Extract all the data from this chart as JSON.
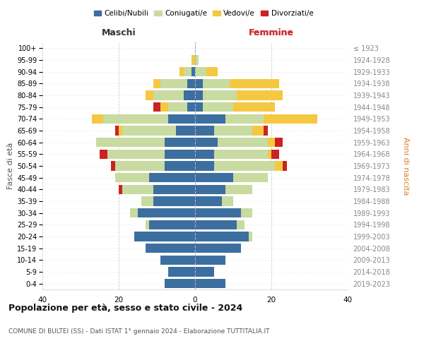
{
  "age_groups": [
    "0-4",
    "5-9",
    "10-14",
    "15-19",
    "20-24",
    "25-29",
    "30-34",
    "35-39",
    "40-44",
    "45-49",
    "50-54",
    "55-59",
    "60-64",
    "65-69",
    "70-74",
    "75-79",
    "80-84",
    "85-89",
    "90-94",
    "95-99",
    "100+"
  ],
  "birth_years": [
    "2019-2023",
    "2014-2018",
    "2009-2013",
    "2004-2008",
    "1999-2003",
    "1994-1998",
    "1989-1993",
    "1984-1988",
    "1979-1983",
    "1974-1978",
    "1969-1973",
    "1964-1968",
    "1959-1963",
    "1954-1958",
    "1949-1953",
    "1944-1948",
    "1939-1943",
    "1934-1938",
    "1929-1933",
    "1924-1928",
    "≤ 1923"
  ],
  "maschi": {
    "celibi": [
      8,
      7,
      9,
      13,
      16,
      12,
      15,
      11,
      11,
      12,
      8,
      8,
      8,
      5,
      7,
      2,
      3,
      2,
      1,
      0,
      0
    ],
    "coniugati": [
      0,
      0,
      0,
      0,
      0,
      1,
      2,
      3,
      8,
      9,
      13,
      15,
      18,
      14,
      17,
      5,
      8,
      7,
      2,
      0,
      0
    ],
    "vedovi": [
      0,
      0,
      0,
      0,
      0,
      0,
      0,
      0,
      0,
      0,
      0,
      0,
      0,
      1,
      3,
      2,
      2,
      2,
      1,
      1,
      0
    ],
    "divorziati": [
      0,
      0,
      0,
      0,
      0,
      0,
      0,
      0,
      1,
      0,
      1,
      2,
      0,
      1,
      0,
      2,
      0,
      0,
      0,
      0,
      0
    ]
  },
  "femmine": {
    "nubili": [
      8,
      5,
      8,
      12,
      14,
      11,
      12,
      7,
      8,
      10,
      5,
      5,
      6,
      5,
      8,
      2,
      2,
      2,
      0,
      0,
      0
    ],
    "coniugate": [
      0,
      0,
      0,
      0,
      1,
      2,
      3,
      3,
      7,
      9,
      16,
      14,
      13,
      10,
      10,
      8,
      9,
      7,
      3,
      1,
      0
    ],
    "vedove": [
      0,
      0,
      0,
      0,
      0,
      0,
      0,
      0,
      0,
      0,
      2,
      1,
      2,
      3,
      14,
      11,
      12,
      13,
      3,
      0,
      0
    ],
    "divorziate": [
      0,
      0,
      0,
      0,
      0,
      0,
      0,
      0,
      0,
      0,
      1,
      2,
      2,
      1,
      0,
      0,
      0,
      0,
      0,
      0,
      0
    ]
  },
  "colors": {
    "celibi": "#3c6fa0",
    "coniugati": "#c8dba0",
    "vedovi": "#f5c842",
    "divorziati": "#cc2222"
  },
  "xlim": 40,
  "title": "Popolazione per età, sesso e stato civile - 2024",
  "subtitle": "COMUNE DI BULTEI (SS) - Dati ISTAT 1° gennaio 2024 - Elaborazione TUTTITALIA.IT",
  "legend_labels": [
    "Celibi/Nubili",
    "Coniugati/e",
    "Vedovi/e",
    "Divorziati/e"
  ]
}
